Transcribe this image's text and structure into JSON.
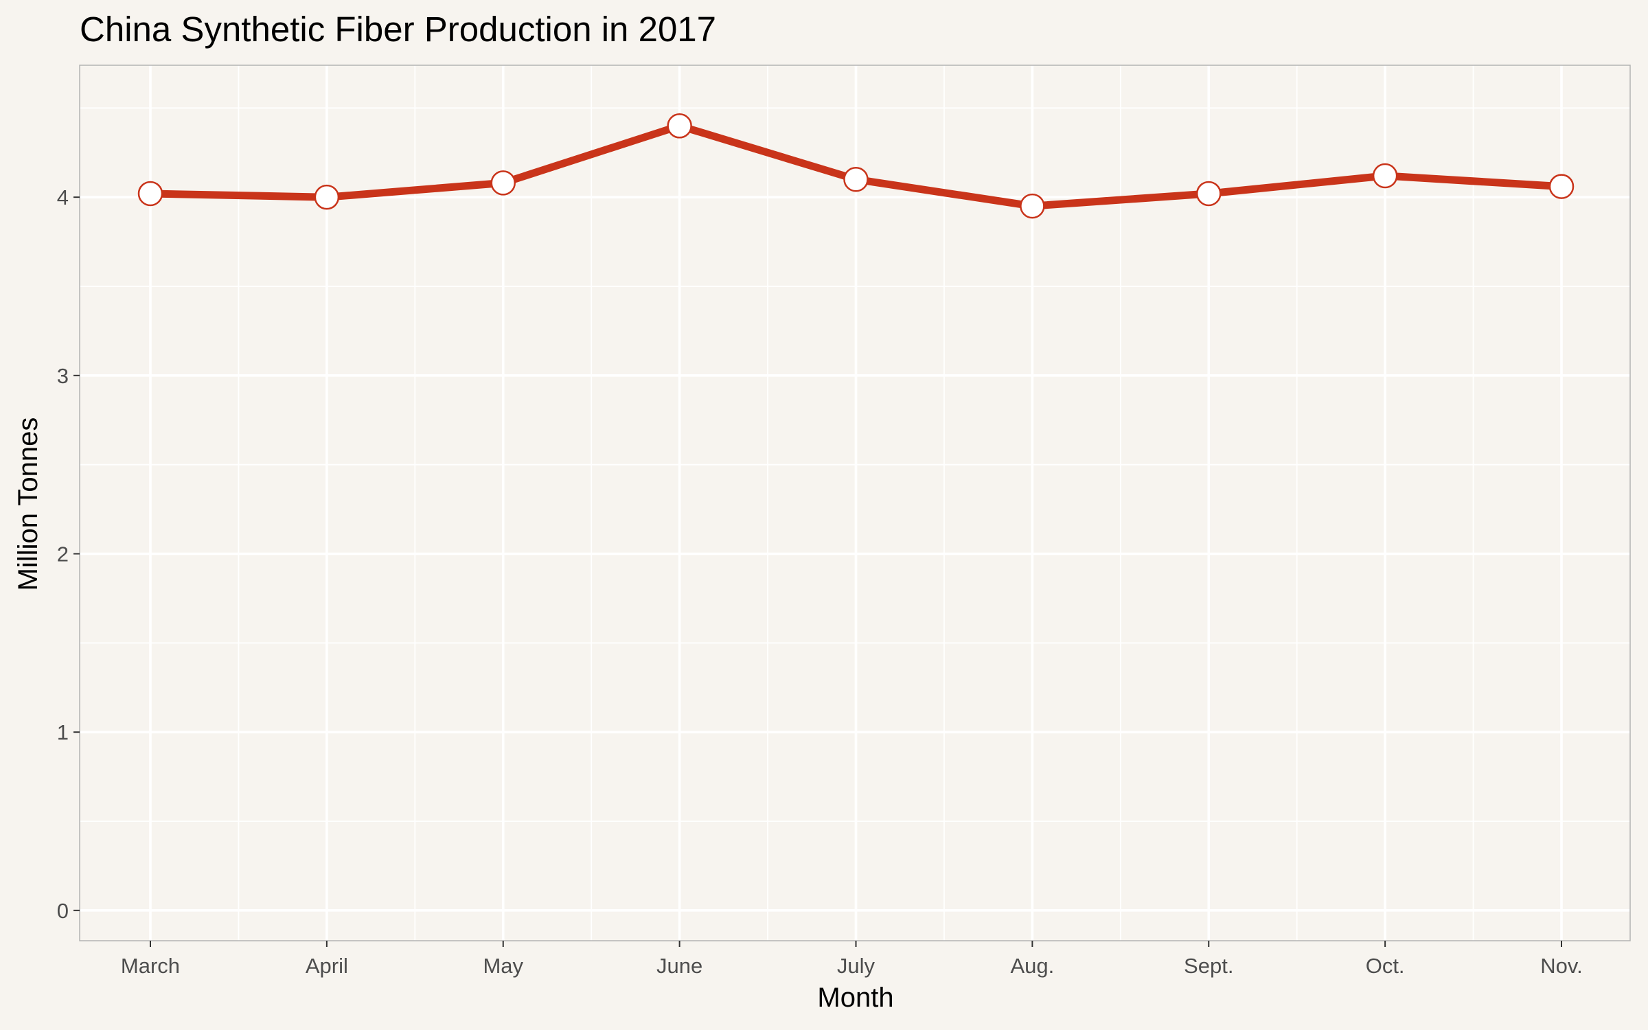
{
  "chart_data": {
    "type": "line",
    "title": "China Synthetic Fiber Production in 2017",
    "xlabel": "Month",
    "ylabel": "Million Tonnes",
    "categories": [
      "March",
      "April",
      "May",
      "June",
      "July",
      "Aug.",
      "Sept.",
      "Oct.",
      "Nov."
    ],
    "series": [
      {
        "values": [
          4.02,
          4.0,
          4.08,
          4.4,
          4.1,
          3.95,
          4.02,
          4.12,
          4.06
        ]
      }
    ],
    "ylim": [
      -0.17,
      4.74
    ],
    "yticks": [
      0,
      1,
      2,
      3,
      4
    ],
    "yticks_minor": [
      0.5,
      1.5,
      2.5,
      3.5,
      4.5
    ],
    "grid": true,
    "legend": "none",
    "colors": {
      "background": "#f7f4ef",
      "panel": "#f7f4ef",
      "panel_border": "#b3b3b3",
      "grid": "#ffffff",
      "line": "#c9341a",
      "marker_fill": "#ffffff",
      "marker_stroke": "#c9341a",
      "tick_text": "#4d4d4d"
    }
  }
}
